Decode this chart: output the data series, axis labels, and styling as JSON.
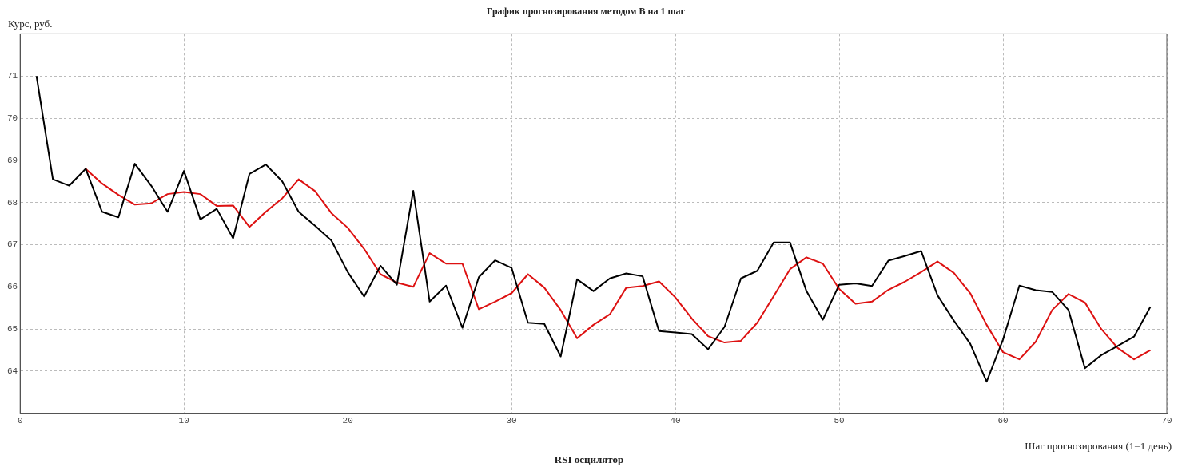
{
  "chart_data": {
    "type": "line",
    "title": "График прогнозирования методом B на 1 шаг",
    "ylabel": "Курс, руб.",
    "xlabel": "Шаг прогнозирования (1=1 день)",
    "annotations": [
      "RSI осцилятор"
    ],
    "xlim": [
      0,
      70
    ],
    "xticks": [
      0,
      10,
      20,
      30,
      40,
      50,
      60,
      70
    ],
    "ylim": [
      63,
      72
    ],
    "yticks": [
      64,
      65,
      66,
      67,
      68,
      69,
      70,
      71
    ],
    "grid": true,
    "series": [
      {
        "color": "#000000",
        "x": [
          1,
          2,
          3,
          4,
          5,
          6,
          7,
          8,
          9,
          10,
          11,
          12,
          13,
          14,
          15,
          16,
          17,
          18,
          19,
          20,
          21,
          22,
          23,
          24,
          25,
          26,
          27,
          28,
          29,
          30,
          31,
          32,
          33,
          34,
          35,
          36,
          37,
          38,
          39,
          40,
          41,
          42,
          43,
          44,
          45,
          46,
          47,
          48,
          49,
          50,
          51,
          52,
          53,
          54,
          55,
          56,
          57,
          58,
          59,
          60,
          61,
          62,
          63,
          64,
          65,
          66,
          67,
          68,
          69
        ],
        "values": [
          71.0,
          68.55,
          68.4,
          68.8,
          67.78,
          67.65,
          68.92,
          68.4,
          67.78,
          68.75,
          67.6,
          67.85,
          67.15,
          68.68,
          68.9,
          68.5,
          67.78,
          67.45,
          67.1,
          66.35,
          65.77,
          66.5,
          66.05,
          68.28,
          65.65,
          66.03,
          65.03,
          66.23,
          66.63,
          66.45,
          65.15,
          65.12,
          64.35,
          66.18,
          65.9,
          66.2,
          66.32,
          66.25,
          64.95,
          64.92,
          64.88,
          64.52,
          65.05,
          66.2,
          66.38,
          67.05,
          67.05,
          65.9,
          65.22,
          66.05,
          66.08,
          66.02,
          66.62,
          66.73,
          66.85,
          65.8,
          65.2,
          64.65,
          63.75,
          64.75,
          66.03,
          65.92,
          65.88,
          65.45,
          64.07,
          64.38,
          64.6,
          64.82,
          65.53
        ]
      },
      {
        "color": "#dd1111",
        "x": [
          4,
          5,
          6,
          7,
          8,
          9,
          10,
          11,
          12,
          13,
          14,
          15,
          16,
          17,
          18,
          19,
          20,
          21,
          22,
          23,
          24,
          25,
          26,
          27,
          28,
          29,
          30,
          31,
          32,
          33,
          34,
          35,
          36,
          37,
          38,
          39,
          40,
          41,
          42,
          43,
          44,
          45,
          46,
          47,
          48,
          49,
          50,
          51,
          52,
          53,
          54,
          55,
          56,
          57,
          58,
          59,
          60,
          61,
          62,
          63,
          64,
          65,
          66,
          67,
          68,
          69
        ],
        "values": [
          68.8,
          68.45,
          68.18,
          67.95,
          67.98,
          68.2,
          68.25,
          68.2,
          67.92,
          67.93,
          67.42,
          67.78,
          68.1,
          68.55,
          68.27,
          67.75,
          67.4,
          66.9,
          66.3,
          66.1,
          66.0,
          66.8,
          66.55,
          66.55,
          65.47,
          65.65,
          65.85,
          66.3,
          65.98,
          65.45,
          64.78,
          65.1,
          65.35,
          65.98,
          66.02,
          66.13,
          65.75,
          65.25,
          64.83,
          64.68,
          64.72,
          65.15,
          65.78,
          66.42,
          66.7,
          66.55,
          65.95,
          65.6,
          65.65,
          65.93,
          66.12,
          66.35,
          66.6,
          66.33,
          65.85,
          65.1,
          64.45,
          64.28,
          64.7,
          65.45,
          65.83,
          65.63,
          65.0,
          64.55,
          64.28,
          64.5
        ]
      }
    ]
  }
}
